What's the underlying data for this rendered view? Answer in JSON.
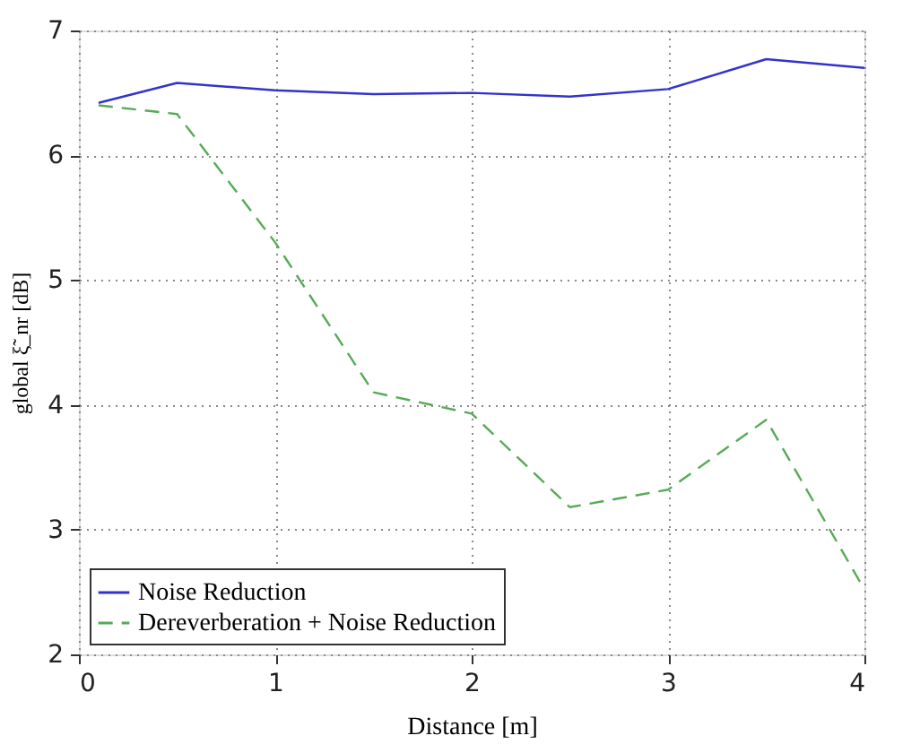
{
  "chart_data": {
    "type": "line",
    "xlabel": "Distance [m]",
    "ylabel": "global ξ̃_nr [dB]",
    "x": [
      0.1,
      0.5,
      1,
      1.5,
      2,
      2.5,
      3,
      3.5,
      4
    ],
    "series": [
      {
        "name": "Noise Reduction",
        "color": "#3333cc",
        "line_style": "solid",
        "values": [
          6.42,
          6.58,
          6.52,
          6.49,
          6.5,
          6.47,
          6.53,
          6.77,
          6.7
        ]
      },
      {
        "name": "Dereverberation + Noise Reduction",
        "color": "#55aa55",
        "line_style": "dashed",
        "values": [
          6.4,
          6.33,
          5.3,
          4.1,
          3.93,
          3.18,
          3.32,
          3.88,
          2.52
        ]
      }
    ],
    "xlim": [
      0,
      4
    ],
    "ylim": [
      2,
      7
    ],
    "xticks": [
      0,
      1,
      2,
      3,
      4
    ],
    "yticks": [
      2,
      3,
      4,
      5,
      6,
      7
    ],
    "grid": true,
    "legend": "bottom left",
    "marker": "none"
  }
}
